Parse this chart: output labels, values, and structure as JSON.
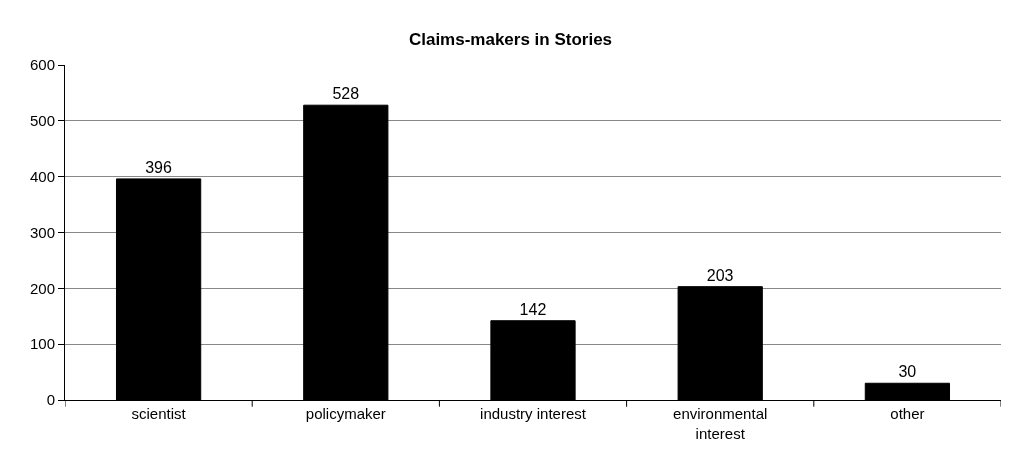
{
  "chart_data": {
    "type": "bar",
    "title": "Claims-makers in Stories",
    "categories": [
      "scientist",
      "policymaker",
      "industry interest",
      "environmental interest",
      "other"
    ],
    "values": [
      396,
      528,
      142,
      203,
      30
    ],
    "color": "#000000",
    "ylim": [
      0,
      600
    ],
    "yticks": [
      0,
      100,
      200,
      300,
      400,
      500,
      600
    ],
    "grid": "y",
    "data_labels": true,
    "legend": false
  }
}
